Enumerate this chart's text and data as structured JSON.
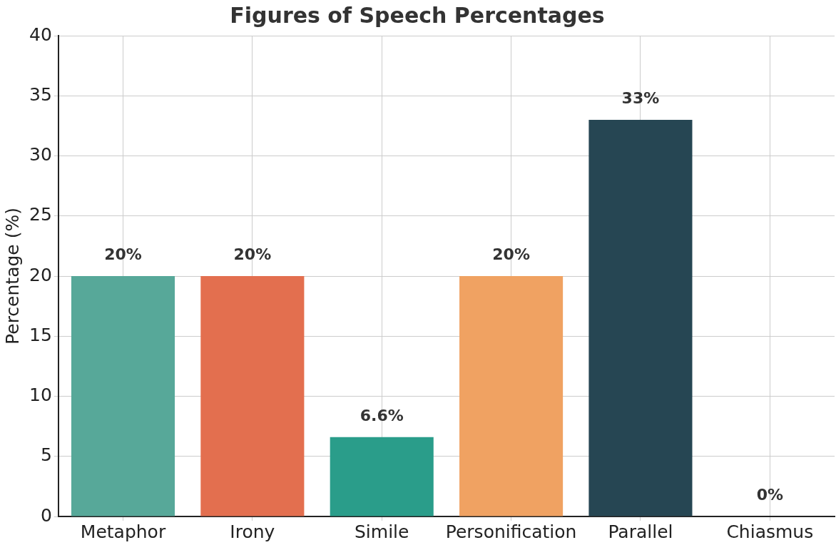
{
  "chart_data": {
    "type": "bar",
    "title": "Figures of Speech Percentages",
    "ylabel": "Percentage (%)",
    "categories": [
      "Metaphor",
      "Irony",
      "Simile",
      "Personification",
      "Parallel",
      "Chiasmus"
    ],
    "values": [
      20,
      20,
      6.6,
      20,
      33,
      0
    ],
    "colors": [
      "#57a899",
      "#e36f4f",
      "#2a9d8a",
      "#f0a262",
      "#264653",
      "#e9c46a"
    ],
    "value_labels": [
      "20%",
      "20%",
      "6.6%",
      "20%",
      "33%",
      "0%"
    ],
    "ylim": [
      0,
      40
    ],
    "yticks": [
      0,
      5,
      10,
      15,
      20,
      25,
      30,
      35,
      40
    ],
    "grid": true
  }
}
